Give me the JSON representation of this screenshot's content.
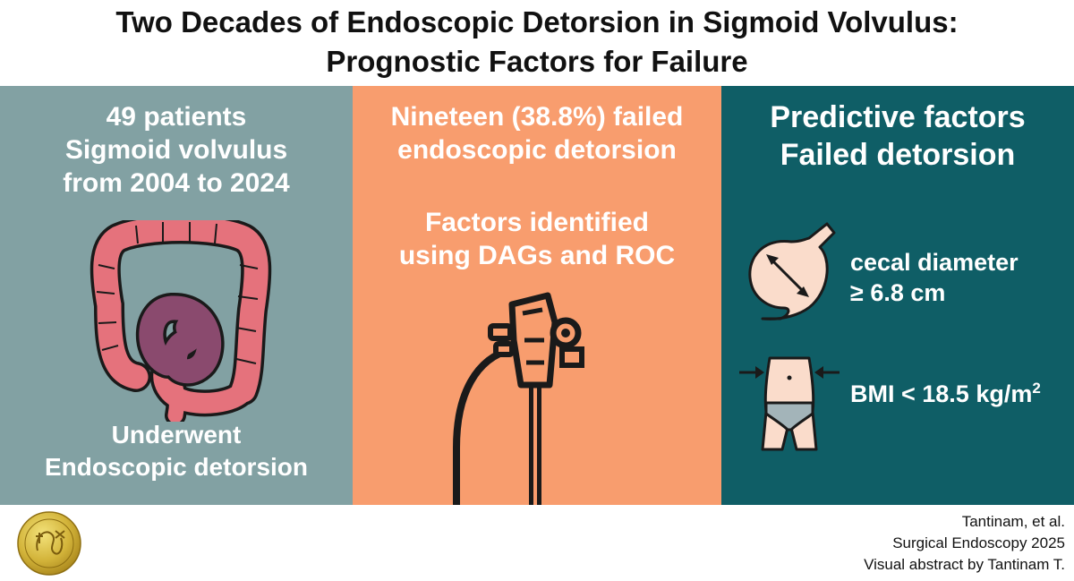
{
  "title": {
    "line1": "Two Decades of Endoscopic Detorsion in Sigmoid Volvulus:",
    "line2": "Prognostic Factors for Failure"
  },
  "panel_left": {
    "line1": "49 patients",
    "line2": "Sigmoid volvulus",
    "line3": "from 2004 to 2024",
    "bottom_line1": "Underwent",
    "bottom_line2": "Endoscopic detorsion",
    "icon": "colon-icon",
    "bg_color": "#82A1A3"
  },
  "panel_middle": {
    "line1": "Nineteen (38.8%) failed",
    "line2": "endoscopic detorsion",
    "line3": "Factors identified",
    "line4": "using DAGs and ROC",
    "icon": "endoscope-icon",
    "bg_color": "#F89D6E"
  },
  "panel_right": {
    "line1": "Predictive factors",
    "line2": "Failed detorsion",
    "factors": [
      {
        "icon": "cecum-diameter-icon",
        "line1": "cecal diameter",
        "line2": "≥ 6.8 cm"
      },
      {
        "icon": "waist-icon",
        "text": "BMI < 18.5 kg/m",
        "superscript": "2"
      }
    ],
    "bg_color": "#0F5E66"
  },
  "footer": {
    "logo": "society-seal-logo",
    "credit_line1": "Tantinam, et al.",
    "credit_line2": "Surgical Endoscopy 2025",
    "credit_line3": "Visual abstract by Tantinam T."
  }
}
